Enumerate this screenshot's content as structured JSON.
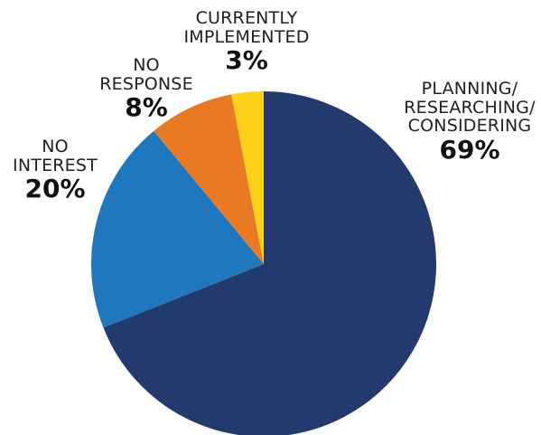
{
  "chart_data": {
    "type": "pie",
    "title": "",
    "slices": [
      {
        "label_lines": [
          "PLANNING/",
          "RESEARCHING/",
          "CONSIDERING"
        ],
        "value": 69,
        "value_label": "69%",
        "color": "#233a6e"
      },
      {
        "label_lines": [
          "NO",
          "INTEREST"
        ],
        "value": 20,
        "value_label": "20%",
        "color": "#1f77be"
      },
      {
        "label_lines": [
          "NO",
          "RESPONSE"
        ],
        "value": 8,
        "value_label": "8%",
        "color": "#e97a23"
      },
      {
        "label_lines": [
          "CURRENTLY",
          "IMPLEMENTED"
        ],
        "value": 3,
        "value_label": "3%",
        "color": "#fcd116"
      }
    ],
    "start": "12 o'clock",
    "direction": "clockwise",
    "legend": "none"
  }
}
